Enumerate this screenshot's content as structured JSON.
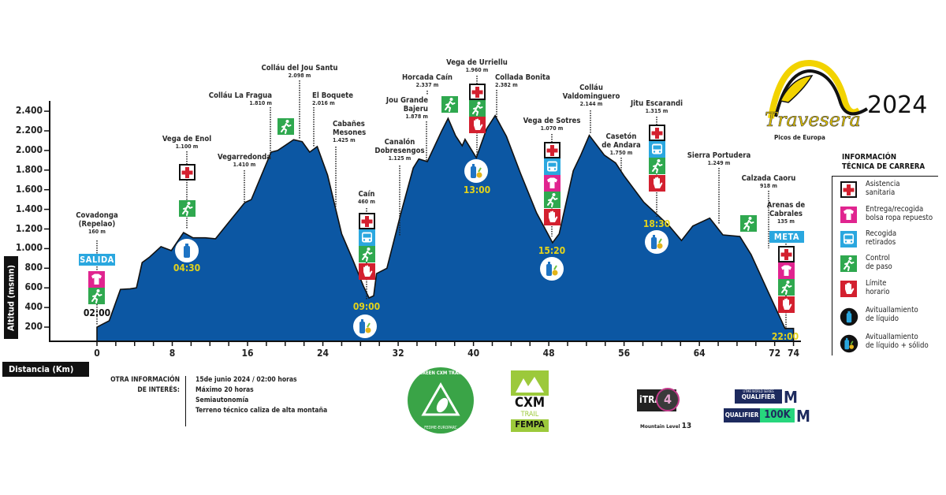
{
  "chart_data": {
    "type": "area",
    "ylabel": "Altitud (msmn)",
    "xlabel": "Distancia (Km)",
    "ylim": [
      55,
      2500
    ],
    "xlim": [
      0,
      74
    ],
    "y_ticks": [
      "200",
      "400",
      "600",
      "800",
      "1.000",
      "1.200",
      "1.400",
      "1.600",
      "1.800",
      "2.000",
      "2.200",
      "2.400"
    ],
    "y_tick_values": [
      200,
      400,
      600,
      800,
      1000,
      1200,
      1400,
      1600,
      1800,
      2000,
      2200,
      2400
    ],
    "x_ticks": [
      "0",
      "8",
      "16",
      "24",
      "32",
      "40",
      "48",
      "56",
      "64",
      "72",
      "74"
    ],
    "x_tick_values": [
      0,
      8,
      16,
      24,
      32,
      40,
      48,
      56,
      64,
      72,
      74
    ],
    "grid": false,
    "fill_color": "#0c57a3",
    "profile": [
      [
        0,
        200
      ],
      [
        1.3,
        265
      ],
      [
        2.5,
        585
      ],
      [
        3.5,
        590
      ],
      [
        4.2,
        600
      ],
      [
        4.8,
        858
      ],
      [
        5.6,
        915
      ],
      [
        6.8,
        1020
      ],
      [
        7.9,
        980
      ],
      [
        9.2,
        1163
      ],
      [
        10.2,
        1110
      ],
      [
        11.5,
        1110
      ],
      [
        12.6,
        1100
      ],
      [
        14,
        1268
      ],
      [
        15.7,
        1469
      ],
      [
        16.4,
        1500
      ],
      [
        18.5,
        1983
      ],
      [
        19.2,
        2000
      ],
      [
        20.9,
        2110
      ],
      [
        21.8,
        2090
      ],
      [
        22.6,
        1983
      ],
      [
        23.4,
        2040
      ],
      [
        24.5,
        1750
      ],
      [
        26,
        1150
      ],
      [
        27.2,
        880
      ],
      [
        28.3,
        620
      ],
      [
        28.9,
        497
      ],
      [
        29.4,
        520
      ],
      [
        29.7,
        745
      ],
      [
        30.8,
        800
      ],
      [
        32.3,
        1365
      ],
      [
        33.6,
        1822
      ],
      [
        34.2,
        1913
      ],
      [
        35.1,
        1887
      ],
      [
        36.6,
        2194
      ],
      [
        37.3,
        2328
      ],
      [
        38.1,
        2150
      ],
      [
        38.8,
        2047
      ],
      [
        39.1,
        2114
      ],
      [
        40.3,
        1927
      ],
      [
        41.4,
        2222
      ],
      [
        42.3,
        2355
      ],
      [
        43.5,
        2144
      ],
      [
        45,
        1766
      ],
      [
        46.7,
        1365
      ],
      [
        48.4,
        1060
      ],
      [
        49.1,
        1150
      ],
      [
        50.6,
        1793
      ],
      [
        51.4,
        1953
      ],
      [
        52.3,
        2154
      ],
      [
        53.9,
        1953
      ],
      [
        55.1,
        1873
      ],
      [
        56,
        1742
      ],
      [
        58.1,
        1472
      ],
      [
        59.6,
        1340
      ],
      [
        60.8,
        1230
      ],
      [
        62.1,
        1083
      ],
      [
        63.3,
        1230
      ],
      [
        65.1,
        1311
      ],
      [
        66.5,
        1140
      ],
      [
        68.3,
        1124
      ],
      [
        69.5,
        939
      ],
      [
        71.3,
        561
      ],
      [
        73.1,
        186
      ],
      [
        74,
        186
      ]
    ]
  },
  "waypoints": [
    {
      "name": "Covadonga\n(Repelao)",
      "elev": "160 m",
      "icons": [
        "shirt",
        "runner"
      ],
      "time": "02:00",
      "badge": "SALIDA"
    },
    {
      "name": "Vega de Enol",
      "elev": "1.100 m",
      "icons": [
        "medical",
        "runner"
      ],
      "time": "04:30",
      "supply": "liquid"
    },
    {
      "name": "Vegarredonda",
      "elev": "1.410 m"
    },
    {
      "name": "Colláu La Fragua",
      "elev": "1.810 m",
      "icons": [
        "runner"
      ]
    },
    {
      "name": "Colláu del Jou Santu",
      "elev": "2.098 m"
    },
    {
      "name": "El Boquete",
      "elev": "2.016 m"
    },
    {
      "name": "Cabañes\nMesones",
      "elev": "1.425 m"
    },
    {
      "name": "Caín",
      "elev": "460 m",
      "icons": [
        "medical",
        "bus",
        "runner",
        "hand"
      ],
      "time": "09:00",
      "supply": "solid"
    },
    {
      "name": "Canalón\nDobresengos",
      "elev": "1.125 m"
    },
    {
      "name": "Jou Grande\nBajeru",
      "elev": "1.878 m"
    },
    {
      "name": "Horcada Caín",
      "elev": "2.337 m",
      "icons": [
        "runner"
      ]
    },
    {
      "name": "Vega de Urriellu",
      "elev": "1.960 m",
      "icons": [
        "medical",
        "runner",
        "hand"
      ],
      "time": "13:00",
      "supply": "solid"
    },
    {
      "name": "Collada Bonita",
      "elev": "2.382 m"
    },
    {
      "name": "Vega de Sotres",
      "elev": "1.070 m",
      "icons": [
        "medical",
        "bus",
        "shirt",
        "runner",
        "hand"
      ],
      "time": "15:20",
      "supply": "solid"
    },
    {
      "name": "Colláu\nValdominguero",
      "elev": "2.144 m"
    },
    {
      "name": "Casetón\nde Andara",
      "elev": "1.750 m"
    },
    {
      "name": "Jitu Escarandi",
      "elev": "1.315 m",
      "icons": [
        "medical",
        "bus",
        "runner",
        "hand"
      ],
      "time": "18:30",
      "supply": "solid"
    },
    {
      "name": "Sierra Portudera",
      "elev": "1.249 m"
    },
    {
      "name": "Calzada Caoru",
      "elev": "918 m",
      "icons": [
        "runner"
      ]
    },
    {
      "name": "Arenas de\nCabrales",
      "elev": "135 m",
      "icons": [
        "medical",
        "shirt",
        "runner",
        "hand"
      ],
      "time": "22:00",
      "badge": "META"
    }
  ],
  "legend": {
    "title": "INFORMACIÓN\nTÉCNICA DE CARRERA",
    "items": [
      {
        "icon": "medical",
        "label": "Asistencia\nsanitaria"
      },
      {
        "icon": "shirt",
        "label": "Entrega/recogida\nbolsa ropa repuesto"
      },
      {
        "icon": "bus",
        "label": "Recogida\nretirados"
      },
      {
        "icon": "runner",
        "label": "Control\nde paso"
      },
      {
        "icon": "hand",
        "label": "Límite\nhorario"
      },
      {
        "icon": "liquid",
        "label": "Avituallamiento\nde líquido"
      },
      {
        "icon": "solid",
        "label": "Avituallamiento\nde líquido + sólido"
      }
    ]
  },
  "info": {
    "heading": "OTRA INFORMACIÓN\nDE INTERÉS:",
    "lines": [
      "15de junio 2024 / 02:00 horas",
      "Máximo 20 horas",
      "Semiautonomía",
      "Terreno técnico caliza de alta montaña"
    ]
  },
  "logos": {
    "travesera": {
      "year": "2024",
      "name": "Travesera",
      "sub": "Picos de Europa"
    },
    "green_cxm": {
      "top": "GREEN CXM TRAIL",
      "bottom": "FEDME-EUROPARC"
    },
    "cxm_fempa": {
      "a": "CXM",
      "b": "TRAIL",
      "c": "FEMPA"
    },
    "itra": {
      "name": "iTRA",
      "level": "4",
      "caption": "Mountain Level",
      "caption_num": "13"
    },
    "utmb": {
      "series": "UTMB WORLD SERIES",
      "q1": "QUALIFIER",
      "q2": "QUALIFIER",
      "dist": "100K",
      "m": "M"
    }
  },
  "colors": {
    "profile": "#0c57a3",
    "time": "#e3d21b",
    "medical": "#d3202f",
    "shirt": "#e0248f",
    "bus": "#2aa7df",
    "runner": "#2fa84f",
    "hand": "#d3202f",
    "badge": "#2aa7df"
  }
}
